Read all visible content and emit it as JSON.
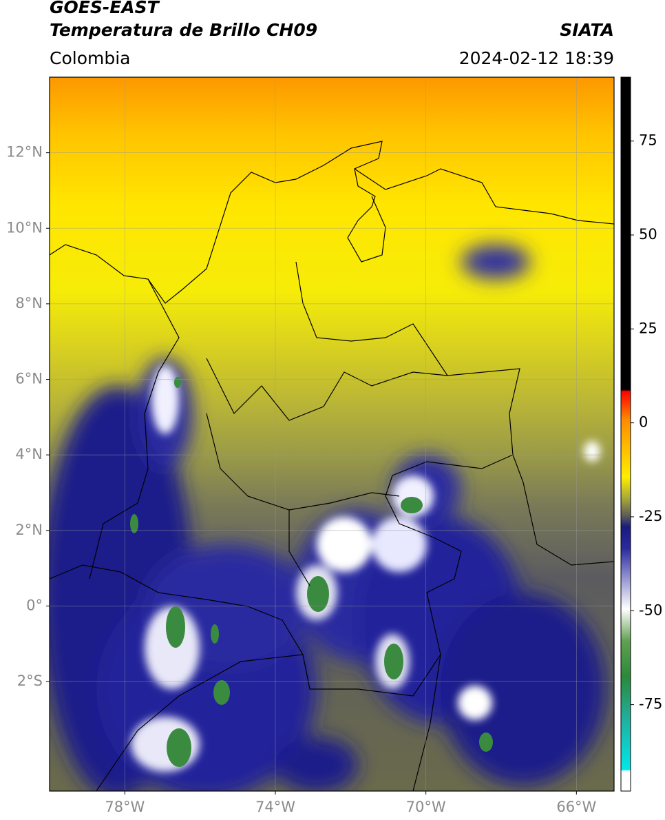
{
  "header": {
    "title": "GOES-EAST",
    "subtitle": "Temperatura de Brillo CH09",
    "source": "SIATA",
    "region": "Colombia",
    "datetime": "2024-02-12 18:39"
  },
  "map": {
    "xlim": [
      -80,
      -65
    ],
    "ylim": [
      -4.9,
      14
    ],
    "xticks": [
      {
        "value": -78,
        "label": "78°W"
      },
      {
        "value": -74,
        "label": "74°W"
      },
      {
        "value": -70,
        "label": "70°W"
      },
      {
        "value": -66,
        "label": "66°W"
      }
    ],
    "yticks": [
      {
        "value": 12,
        "label": "12°N"
      },
      {
        "value": 10,
        "label": "10°N"
      },
      {
        "value": 8,
        "label": "8°N"
      },
      {
        "value": 6,
        "label": "6°N"
      },
      {
        "value": 4,
        "label": "4°N"
      },
      {
        "value": 2,
        "label": "2°N"
      },
      {
        "value": 0,
        "label": "0°"
      },
      {
        "value": -2,
        "label": "2°S"
      }
    ]
  },
  "colorbar": {
    "lim": [
      -98,
      92
    ],
    "ticks": [
      75,
      50,
      25,
      0,
      -25,
      -50,
      -75
    ]
  }
}
